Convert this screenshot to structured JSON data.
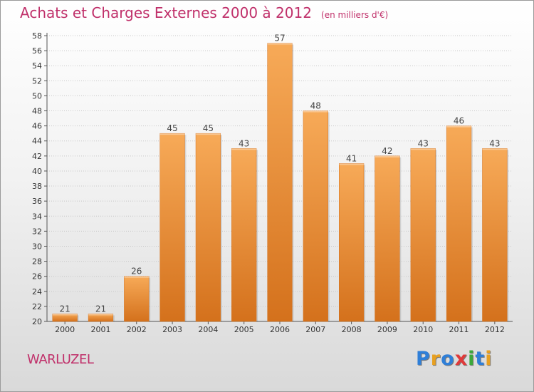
{
  "title": "Achats et Charges Externes 2000 à 2012",
  "unit": "(en milliers d'€)",
  "commune": "WARLUZEL",
  "logo": {
    "text": "Proxiti",
    "colors": [
      "#2f7fd8",
      "#e8a020",
      "#2f7fd8",
      "#e03a3a",
      "#3aa83a",
      "#2f7fd8",
      "#e8a020"
    ]
  },
  "colors": {
    "bar": "#f0943c",
    "bar_light": "#f7aa58",
    "bar_dark": "#d4711c",
    "title": "#c0306a",
    "axis": "#555555",
    "grid": "#c8c8c8"
  },
  "chart_data": {
    "type": "bar",
    "categories": [
      "2000",
      "2001",
      "2002",
      "2003",
      "2004",
      "2005",
      "2006",
      "2007",
      "2008",
      "2009",
      "2010",
      "2011",
      "2012"
    ],
    "values": [
      21,
      21,
      26,
      45,
      45,
      43,
      57,
      48,
      41,
      42,
      43,
      46,
      43
    ],
    "ylim": [
      20,
      58
    ],
    "yticks": [
      20,
      22,
      24,
      26,
      28,
      30,
      32,
      34,
      36,
      38,
      40,
      42,
      44,
      46,
      48,
      50,
      52,
      54,
      56,
      58
    ],
    "grid": true,
    "data_labels": true
  }
}
